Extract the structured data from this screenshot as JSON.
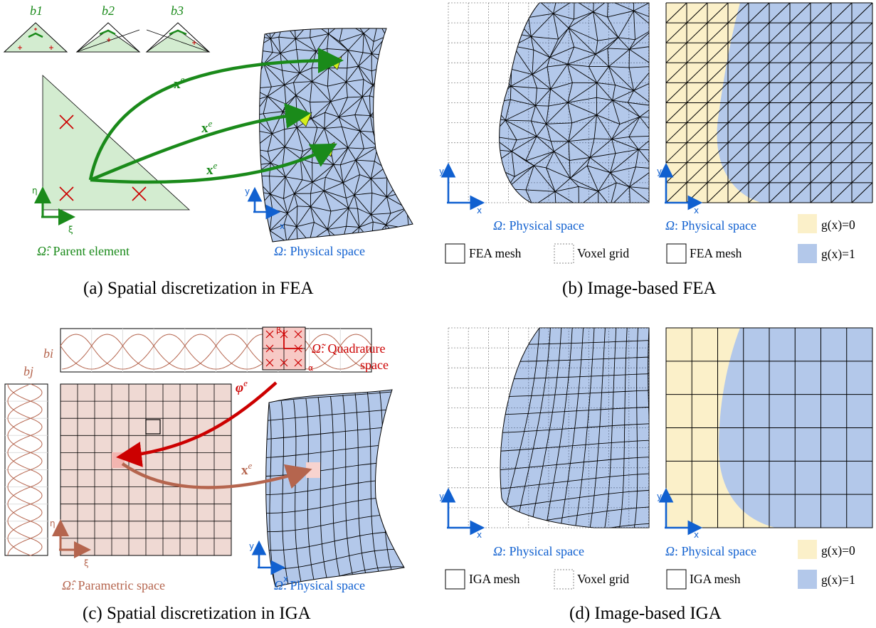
{
  "panels": {
    "a": {
      "caption": "(a) Spatial discretization in FEA",
      "basis_labels": [
        "b1",
        "b2",
        "b3"
      ],
      "map_label": "x",
      "map_sup": "e",
      "axes": {
        "vertical": "η",
        "horizontal": "ξ"
      },
      "phys_axes": {
        "vertical": "y",
        "horizontal": "x"
      },
      "parent_label_sym": "Ω̂",
      "parent_label_text": ": Parent element",
      "phys_label_sym": "Ω",
      "phys_label_text": ": Physical space"
    },
    "b": {
      "caption": "(b) Image-based FEA",
      "phys_label_sym": "Ω",
      "phys_label_text": ": Physical space",
      "legend": {
        "mesh": "FEA mesh",
        "voxel": "Voxel grid",
        "g0": "g(x)=0",
        "g1": "g(x)=1"
      }
    },
    "c": {
      "caption": "(c) Spatial discretization in IGA",
      "bi": "bi",
      "bj": "bj",
      "quad_sym": "Ω̃",
      "quad_text_1": ": Quadrature",
      "quad_text_2": "space",
      "quad_axes": {
        "vertical": "β",
        "horizontal": "α"
      },
      "phi_label": "φ",
      "phi_sup": "e",
      "map_label": "x",
      "map_sup": "e",
      "param_axes": {
        "vertical": "η",
        "horizontal": "ξ"
      },
      "param_label_sym": "Ω̂",
      "param_label_text": ": Parametric space",
      "phys_label_sym": "Ω",
      "phys_label_text": ": Physical space"
    },
    "d": {
      "caption": "(d) Image-based IGA",
      "phys_label_sym": "Ω",
      "phys_label_text": ": Physical space",
      "legend": {
        "mesh": "IGA mesh",
        "voxel": "Voxel grid",
        "g0": "g(x)=0",
        "g1": "g(x)=1"
      }
    }
  },
  "colors": {
    "blue_fill": "#b3c8ea",
    "cream_fill": "#fbf0c9",
    "green": "#1a8a1a",
    "green_fill": "#d3ecd0",
    "red": "#cc0000",
    "brown": "#b5654e",
    "brown_fill": "#efd9d3",
    "axis_blue": "#1060d0",
    "highlight": "#d4ef1c"
  }
}
